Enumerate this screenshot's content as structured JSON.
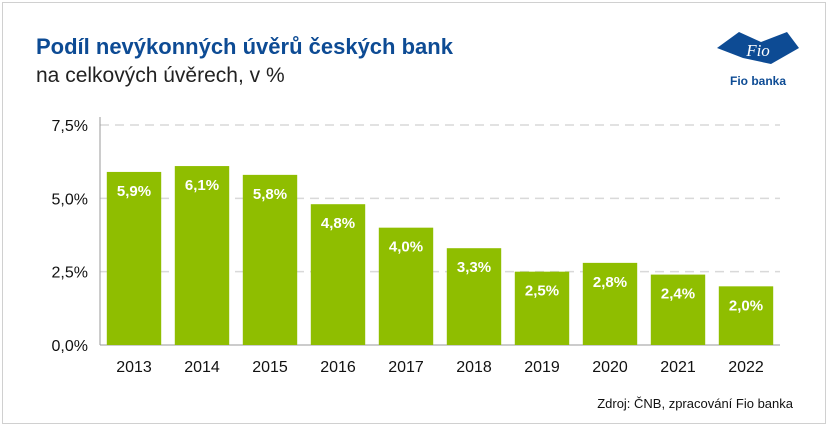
{
  "header": {
    "title": "Podíl nevýkonných úvěrů českých bank",
    "subtitle": "na celkových úvěrech, v %"
  },
  "logo": {
    "mark": "Fio",
    "name": "Fio banka",
    "color": "#0d4b94"
  },
  "source": "Zdroj: ČNB, zpracování Fio banka",
  "chart_data": {
    "type": "bar",
    "title": "Podíl nevýkonných úvěrů českých bank",
    "subtitle": "na celkových úvěrech, v %",
    "categories": [
      "2013",
      "2014",
      "2015",
      "2016",
      "2017",
      "2018",
      "2019",
      "2020",
      "2021",
      "2022"
    ],
    "values": [
      5.9,
      6.1,
      5.8,
      4.8,
      4.0,
      3.3,
      2.5,
      2.8,
      2.4,
      2.0
    ],
    "value_labels": [
      "5,9%",
      "6,1%",
      "5,8%",
      "4,8%",
      "4,0%",
      "3,3%",
      "2,5%",
      "2,8%",
      "2,4%",
      "2,0%"
    ],
    "ylim": [
      0,
      7.5
    ],
    "yticks": [
      0,
      2.5,
      5.0,
      7.5
    ],
    "ytick_labels": [
      "0,0%",
      "2,5%",
      "5,0%",
      "7,5%"
    ],
    "xlabel": "",
    "ylabel": "",
    "grid": true,
    "legend": "none",
    "colors": {
      "bar": "#8fbe00",
      "grid": "#d9d9d9",
      "axis": "#9a9a9a",
      "label": "#ffffff"
    }
  }
}
